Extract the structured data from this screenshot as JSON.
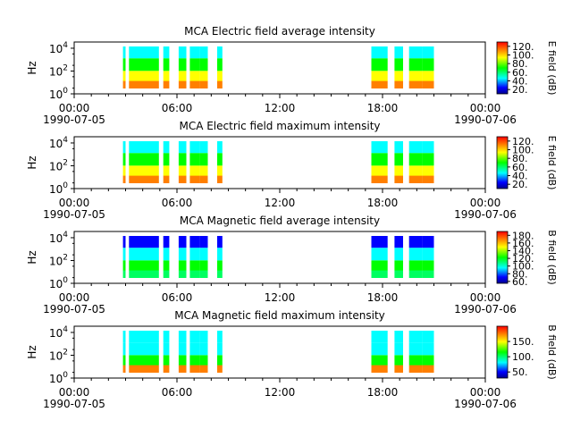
{
  "chart_data": [
    {
      "type": "heatmap",
      "title": "MCA  Electric field average intensity",
      "ylabel": "Hz",
      "y_scale": "log",
      "y_ticks": [
        {
          "base": "10",
          "exp": "0"
        },
        {
          "base": "10",
          "exp": "2"
        },
        {
          "base": "10",
          "exp": "4"
        }
      ],
      "x_ticks": [
        {
          "time": "00:00",
          "date": "1990-07-05"
        },
        {
          "time": "06:00",
          "date": ""
        },
        {
          "time": "12:00",
          "date": ""
        },
        {
          "time": "18:00",
          "date": ""
        },
        {
          "time": "00:00",
          "date": "1990-07-06"
        }
      ],
      "colorbar_label": "E field (dB)",
      "colorbar_ticks": [
        "20.",
        "40.",
        "60.",
        "80.",
        "100.",
        "120."
      ],
      "colorbar_range": [
        10,
        130
      ],
      "data_intervals_hours": [
        [
          2.85,
          3.0
        ],
        [
          3.2,
          4.95
        ],
        [
          5.2,
          5.55
        ],
        [
          6.1,
          6.55
        ],
        [
          6.75,
          7.35
        ],
        [
          7.35,
          7.8
        ],
        [
          8.35,
          8.65
        ],
        [
          17.35,
          18.3
        ],
        [
          18.7,
          19.2
        ],
        [
          19.55,
          20.3
        ],
        [
          20.3,
          21.0
        ]
      ],
      "band_colors": [
        "#ff7f00",
        "#ffff00",
        "#00ff00",
        "#00ffff"
      ]
    },
    {
      "type": "heatmap",
      "title": "MCA  Electric field maximum intensity",
      "ylabel": "Hz",
      "y_scale": "log",
      "y_ticks": [
        {
          "base": "10",
          "exp": "0"
        },
        {
          "base": "10",
          "exp": "2"
        },
        {
          "base": "10",
          "exp": "4"
        }
      ],
      "x_ticks": [
        {
          "time": "00:00",
          "date": "1990-07-05"
        },
        {
          "time": "06:00",
          "date": ""
        },
        {
          "time": "12:00",
          "date": ""
        },
        {
          "time": "18:00",
          "date": ""
        },
        {
          "time": "00:00",
          "date": "1990-07-06"
        }
      ],
      "colorbar_label": "E field (dB)",
      "colorbar_ticks": [
        "20.",
        "40.",
        "60.",
        "80.",
        "100.",
        "120."
      ],
      "colorbar_range": [
        10,
        130
      ],
      "data_intervals_hours": [
        [
          2.85,
          3.0
        ],
        [
          3.2,
          4.95
        ],
        [
          5.2,
          5.55
        ],
        [
          6.1,
          6.55
        ],
        [
          6.75,
          7.35
        ],
        [
          7.35,
          7.8
        ],
        [
          8.35,
          8.65
        ],
        [
          17.35,
          18.3
        ],
        [
          18.7,
          19.2
        ],
        [
          19.55,
          20.3
        ],
        [
          20.3,
          21.0
        ]
      ],
      "band_colors": [
        "#ff7f00",
        "#ffff00",
        "#00ff00",
        "#00ffff"
      ]
    },
    {
      "type": "heatmap",
      "title": "MCA  Magnetic field average intensity",
      "ylabel": "Hz",
      "y_scale": "log",
      "y_ticks": [
        {
          "base": "10",
          "exp": "0"
        },
        {
          "base": "10",
          "exp": "2"
        },
        {
          "base": "10",
          "exp": "4"
        }
      ],
      "x_ticks": [
        {
          "time": "00:00",
          "date": "1990-07-05"
        },
        {
          "time": "06:00",
          "date": ""
        },
        {
          "time": "12:00",
          "date": ""
        },
        {
          "time": "18:00",
          "date": ""
        },
        {
          "time": "00:00",
          "date": "1990-07-06"
        }
      ],
      "colorbar_label": "B field (dB)",
      "colorbar_ticks": [
        "60.",
        "80.",
        "100.",
        "120.",
        "140.",
        "160.",
        "180."
      ],
      "colorbar_range": [
        55,
        190
      ],
      "data_intervals_hours": [
        [
          2.85,
          3.0
        ],
        [
          3.2,
          4.95
        ],
        [
          5.2,
          5.55
        ],
        [
          6.1,
          6.55
        ],
        [
          6.75,
          7.35
        ],
        [
          7.35,
          7.8
        ],
        [
          8.35,
          8.65
        ],
        [
          17.35,
          18.3
        ],
        [
          18.7,
          19.2
        ],
        [
          19.55,
          20.3
        ],
        [
          20.3,
          21.0
        ]
      ],
      "band_colors": [
        "#00ff60",
        "#00ff00",
        "#00ffff",
        "#0000ff"
      ]
    },
    {
      "type": "heatmap",
      "title": "MCA  Magnetic field maximum intensity",
      "ylabel": "Hz",
      "y_scale": "log",
      "y_ticks": [
        {
          "base": "10",
          "exp": "0"
        },
        {
          "base": "10",
          "exp": "2"
        },
        {
          "base": "10",
          "exp": "4"
        }
      ],
      "x_ticks": [
        {
          "time": "00:00",
          "date": "1990-07-05"
        },
        {
          "time": "06:00",
          "date": ""
        },
        {
          "time": "12:00",
          "date": ""
        },
        {
          "time": "18:00",
          "date": ""
        },
        {
          "time": "00:00",
          "date": "1990-07-06"
        }
      ],
      "colorbar_label": "B field (dB)",
      "colorbar_ticks": [
        "50.",
        "100.",
        "150."
      ],
      "colorbar_range": [
        30,
        200
      ],
      "data_intervals_hours": [
        [
          2.85,
          3.0
        ],
        [
          3.2,
          4.95
        ],
        [
          5.2,
          5.55
        ],
        [
          6.1,
          6.55
        ],
        [
          6.75,
          7.35
        ],
        [
          7.35,
          7.8
        ],
        [
          8.35,
          8.65
        ],
        [
          17.35,
          18.3
        ],
        [
          18.7,
          19.2
        ],
        [
          19.55,
          20.3
        ],
        [
          20.3,
          21.0
        ]
      ],
      "band_colors": [
        "#ff7f00",
        "#00ff00",
        "#00ffff",
        "#00ffff"
      ]
    }
  ]
}
